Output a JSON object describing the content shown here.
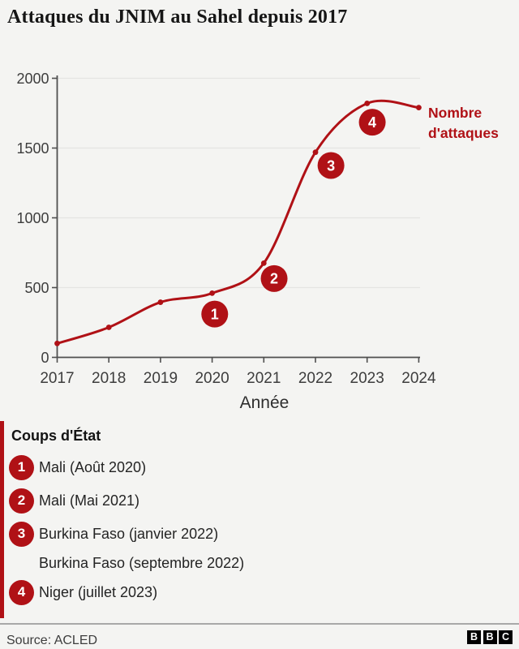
{
  "title": "Attaques du JNIM au Sahel depuis 2017",
  "colors": {
    "accent_red": "#b01116",
    "background": "#f4f4f2",
    "gridline": "#e4e4e2",
    "spine": "#4f4f4f",
    "axis_text": "#3d3d3d",
    "title_text": "#161616",
    "logo_block": "#000000"
  },
  "chart_data": {
    "type": "line",
    "title": "Attaques du JNIM au Sahel depuis 2017",
    "x": [
      2017,
      2018,
      2019,
      2020,
      2021,
      2022,
      2023,
      2024
    ],
    "series": [
      {
        "name": "Nombre d'attaques",
        "values": [
          100,
          215,
          395,
          460,
          675,
          1470,
          1820,
          1790
        ]
      }
    ],
    "xlabel": "Année",
    "ylabel": "",
    "ylim": [
      0,
      2000
    ],
    "y_ticks": [
      0,
      500,
      1000,
      1500,
      2000
    ],
    "grid": "horizontal",
    "line_color": "#b01116",
    "end_label": {
      "line1": "Nombre",
      "line2": "d'attaques"
    },
    "annotations": [
      {
        "label": "1",
        "year": 2020.05,
        "value": 310
      },
      {
        "label": "2",
        "year": 2021.2,
        "value": 565
      },
      {
        "label": "3",
        "year": 2022.3,
        "value": 1375
      },
      {
        "label": "4",
        "year": 2023.1,
        "value": 1685
      }
    ]
  },
  "legend": {
    "heading": "Coups d'État",
    "items": [
      {
        "badge": "1",
        "text": "Mali (Août 2020)"
      },
      {
        "badge": "2",
        "text": "Mali (Mai 2021)"
      },
      {
        "badge": "3",
        "text": "Burkina Faso (janvier 2022)"
      },
      {
        "badge": "",
        "text": "Burkina Faso (septembre 2022)"
      },
      {
        "badge": "4",
        "text": "Niger (juillet 2023)"
      }
    ]
  },
  "footer": {
    "source": "Source: ACLED",
    "logo_letters": [
      "B",
      "B",
      "C"
    ]
  }
}
